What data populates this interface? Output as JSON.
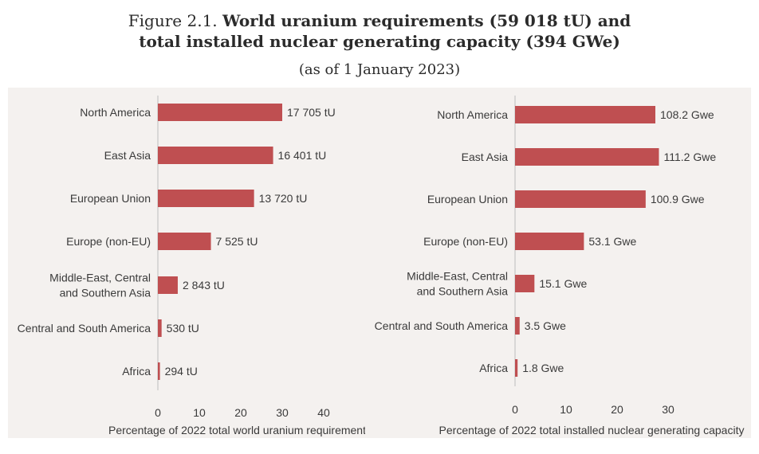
{
  "title": {
    "figure_label": "Figure 2.1.",
    "line1_bold": "World uranium requirements (59 018 tU) and",
    "line2": "total installed nuclear generating capacity (394 GWe)",
    "subtitle": "(as of 1 January 2023)"
  },
  "colors": {
    "bar": "#bf4f51",
    "panel_bg": "#f4f1ef",
    "axis": "#bdbdbd",
    "text": "#3a3a3a"
  },
  "chart_data": [
    {
      "type": "bar",
      "orientation": "horizontal",
      "categories": [
        "North America",
        "East Asia",
        "European Union",
        "Europe (non-EU)",
        "Middle-East, Central and Southern Asia",
        "Central and South America",
        "Africa"
      ],
      "category_lines": [
        [
          "North America"
        ],
        [
          "East Asia"
        ],
        [
          "European Union"
        ],
        [
          "Europe (non-EU)"
        ],
        [
          "Middle-East, Central",
          "and Southern Asia"
        ],
        [
          "Central and South America"
        ],
        [
          "Africa"
        ]
      ],
      "values": [
        30.0,
        27.8,
        23.2,
        12.8,
        4.8,
        0.9,
        0.5
      ],
      "data_labels": [
        "17 705 tU",
        "16 401 tU",
        "13 720 tU",
        "7 525 tU",
        "2 843 tU",
        "530 tU",
        "294 tU"
      ],
      "xlim": [
        0,
        40
      ],
      "xticks": [
        0,
        10,
        20,
        30,
        40
      ],
      "xlabel": "Percentage of 2022 total world uranium requirements",
      "ylabel": ""
    },
    {
      "type": "bar",
      "orientation": "horizontal",
      "categories": [
        "North America",
        "East Asia",
        "European Union",
        "Europe (non-EU)",
        "Middle-East, Central and Southern Asia",
        "Central and South America",
        "Africa"
      ],
      "category_lines": [
        [
          "North America"
        ],
        [
          "East Asia"
        ],
        [
          "European Union"
        ],
        [
          "Europe (non-EU)"
        ],
        [
          "Middle-East, Central",
          "and Southern Asia"
        ],
        [
          "Central and South America"
        ],
        [
          "Africa"
        ]
      ],
      "values": [
        27.5,
        28.2,
        25.6,
        13.5,
        3.8,
        0.9,
        0.5
      ],
      "data_labels": [
        "108.2 Gwe",
        "111.2 Gwe",
        "100.9 Gwe",
        "53.1 Gwe",
        "15.1 Gwe",
        "3.5 Gwe",
        "1.8 Gwe"
      ],
      "xlim": [
        0,
        30
      ],
      "xticks": [
        0,
        10,
        20,
        30
      ],
      "xlabel": "Percentage of 2022 total installed nuclear generating capacity",
      "ylabel": ""
    }
  ]
}
